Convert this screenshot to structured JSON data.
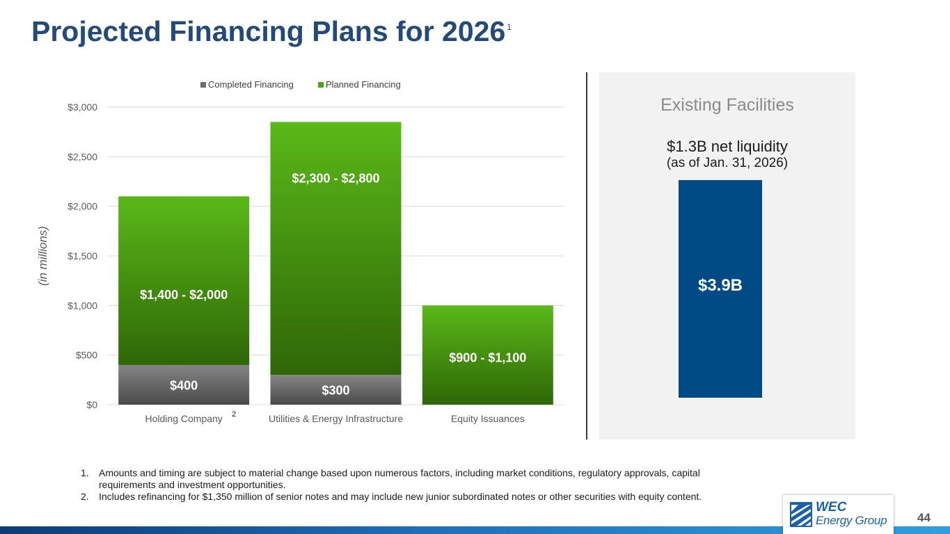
{
  "title": "Projected Financing Plans for 2026",
  "title_footnote": "1",
  "chart_data": {
    "type": "bar",
    "stacked": true,
    "categories": [
      "Holding Company",
      "Utilities & Energy Infrastructure",
      "Equity Issuances"
    ],
    "category_footnotes": [
      "2",
      "",
      ""
    ],
    "ylabel": "(in millions)",
    "ylim": [
      0,
      3000
    ],
    "yticks": [
      "$0",
      "$500",
      "$1,000",
      "$1,500",
      "$2,000",
      "$2,500",
      "$3,000"
    ],
    "ytick_values": [
      0,
      500,
      1000,
      1500,
      2000,
      2500,
      3000
    ],
    "grid": true,
    "legend_position": "top",
    "series": [
      {
        "name": "Completed Financing",
        "color": "#6b6b6b",
        "values": [
          400,
          300,
          0
        ],
        "labels": [
          "$400",
          "$300",
          ""
        ]
      },
      {
        "name": "Planned Financing",
        "color": "#4aa318",
        "values": [
          1700,
          2550,
          1000
        ],
        "labels": [
          "$1,400 - $2,000",
          "$2,300 - $2,800",
          "$900 - $1,100"
        ]
      }
    ]
  },
  "facilities": {
    "title": "Existing Facilities",
    "subtitle": "$1.3B net liquidity",
    "note": "(as of Jan. 31, 2026)",
    "bar_label": "$3.9B",
    "bar_color": "#004b85"
  },
  "footnotes": [
    {
      "num": "1.",
      "text": "Amounts and timing are subject to material change based upon numerous factors, including market conditions, regulatory approvals, capital requirements and investment opportunities."
    },
    {
      "num": "2.",
      "text": "Includes refinancing for $1,350 million of senior notes and may include new junior subordinated notes or other securities with equity content."
    }
  ],
  "logo": {
    "line1": "WEC",
    "line2": "Energy Group"
  },
  "page_number": "44"
}
